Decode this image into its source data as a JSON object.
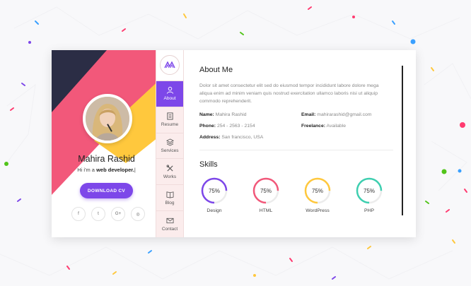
{
  "colors": {
    "accent": "#7d47e9",
    "navy": "#2b2d45",
    "pink": "#f2587a",
    "yellow": "#ffc83d"
  },
  "profile": {
    "name": "Mahira Rashid",
    "role_prefix": "Hi i'm a ",
    "role_highlight": "web developer.",
    "role_cursor": "|",
    "download_label": "DOWNLOAD CV",
    "socials": [
      {
        "icon": "facebook-icon",
        "glyph": "f"
      },
      {
        "icon": "twitter-icon",
        "glyph": "t"
      },
      {
        "icon": "google-plus-icon",
        "glyph": "G+"
      },
      {
        "icon": "dribbble-icon",
        "glyph": "◎"
      }
    ]
  },
  "nav": {
    "logo_icon": "logo-icon",
    "items": [
      {
        "label": "About",
        "icon": "user-icon",
        "active": true
      },
      {
        "label": "Resume",
        "icon": "resume-icon",
        "active": false
      },
      {
        "label": "Services",
        "icon": "layers-icon",
        "active": false
      },
      {
        "label": "Works",
        "icon": "tools-icon",
        "active": false
      },
      {
        "label": "Blog",
        "icon": "book-icon",
        "active": false
      },
      {
        "label": "Contact",
        "icon": "mail-icon",
        "active": false
      }
    ]
  },
  "about": {
    "title": "About Me",
    "text": "Dolor sit amet consectetur elit sed do eiusmod tempor incididunt labore dolore mega aliqua enim ad minim veniam quis nostrud exercitation ullamco laboris nisi ut aliquip commodo reprehenderit.",
    "info": [
      {
        "label": "Name:",
        "value": "Mahira Rashid"
      },
      {
        "label": "Email:",
        "value": "mahirarashid@gmail.com"
      },
      {
        "label": "Phone:",
        "value": "254 - 2563 - 2154"
      },
      {
        "label": "Freelance:",
        "value": "Available"
      },
      {
        "label": "Address:",
        "value": "San francisco, USA"
      }
    ]
  },
  "skills": {
    "title": "Skills",
    "items": [
      {
        "label": "Design",
        "percent": 75,
        "display": "75%",
        "color": "#7d47e9"
      },
      {
        "label": "HTML",
        "percent": 75,
        "display": "75%",
        "color": "#f2587a"
      },
      {
        "label": "WordPress",
        "percent": 75,
        "display": "75%",
        "color": "#ffc83d"
      },
      {
        "label": "PHP",
        "percent": 75,
        "display": "75%",
        "color": "#3ecfb0"
      }
    ]
  }
}
